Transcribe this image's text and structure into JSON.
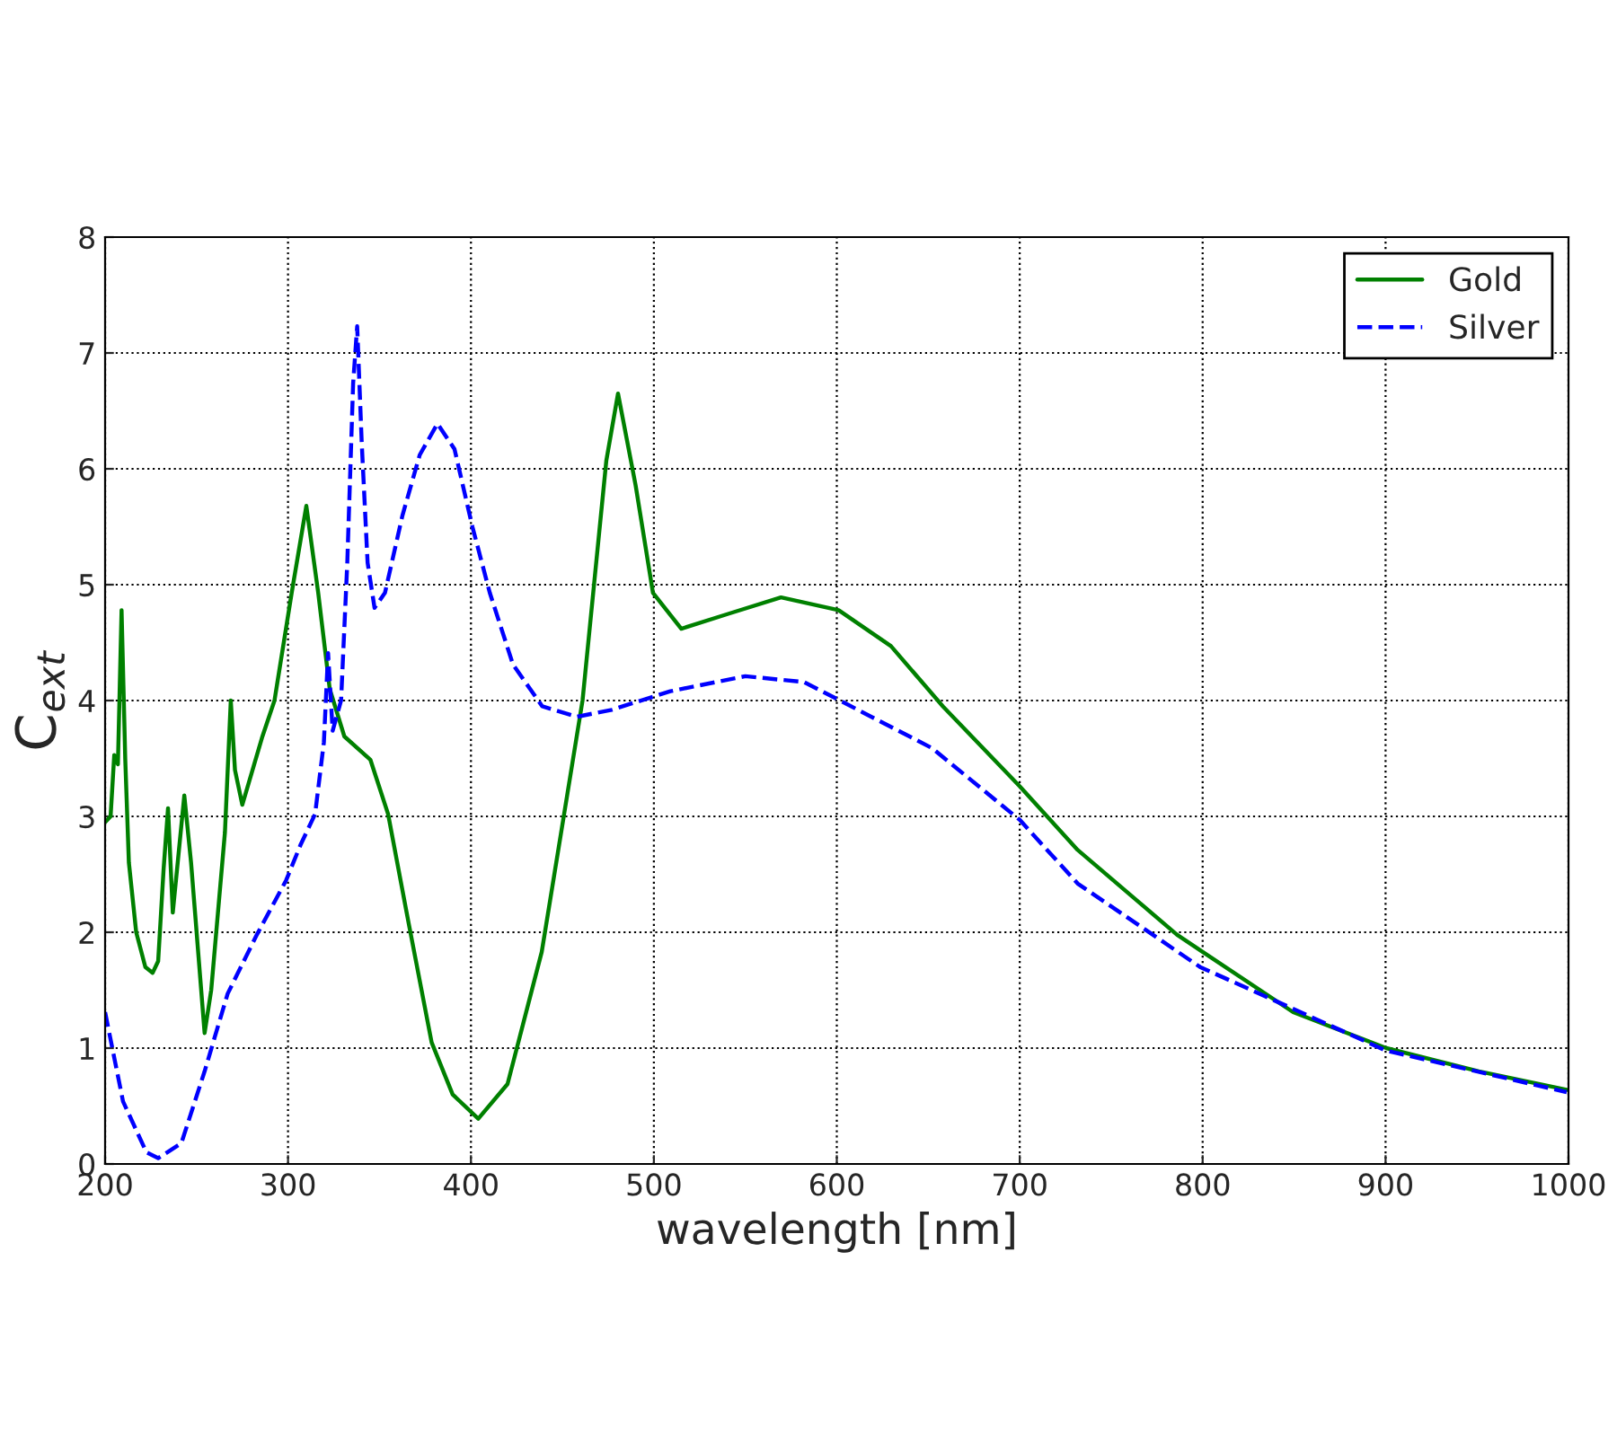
{
  "chart_data": {
    "type": "line",
    "xlabel": "wavelength [nm]",
    "ylabel": "C$_{ext}$",
    "xlim": [
      200,
      1000
    ],
    "xticks": [
      200,
      300,
      400,
      500,
      600,
      700,
      800,
      900,
      1000
    ],
    "ylim": [
      0,
      8
    ],
    "yticks": [
      0,
      1,
      2,
      3,
      4,
      5,
      6,
      7,
      8
    ],
    "grid": true,
    "legend": "top right",
    "marker": "none",
    "series": [
      {
        "name": "Gold",
        "color": "#008000",
        "line_style": "solid",
        "x": [
          200,
          203,
          205,
          207,
          209,
          211,
          213,
          217,
          222,
          226,
          229,
          232,
          234.4,
          237,
          243.3,
          247,
          254.4,
          258,
          265.5,
          268.7,
          271,
          275,
          286,
          292.6,
          302,
          310,
          316.5,
          322.8,
          330.8,
          345,
          354.7,
          365.8,
          378.5,
          390,
          404,
          420,
          438.7,
          461,
          474,
          480.4,
          490,
          499.5,
          515,
          541,
          569.5,
          601,
          629.6,
          658,
          700,
          731.7,
          785.9,
          800,
          849.5,
          900.4,
          951,
          999
        ],
        "values": [
          2.95,
          3.0,
          3.53,
          3.45,
          4.78,
          3.5,
          2.6,
          2.0,
          1.7,
          1.65,
          1.75,
          2.55,
          3.07,
          2.17,
          3.18,
          2.6,
          1.13,
          1.5,
          2.86,
          4.0,
          3.4,
          3.1,
          3.69,
          4.0,
          4.93,
          5.68,
          4.93,
          4.1,
          3.69,
          3.49,
          3.02,
          2.09,
          1.05,
          0.6,
          0.39,
          0.69,
          1.83,
          4.0,
          6.07,
          6.65,
          5.86,
          4.93,
          4.62,
          4.75,
          4.89,
          4.78,
          4.47,
          3.95,
          3.26,
          2.71,
          1.98,
          1.83,
          1.31,
          1.0,
          0.8,
          0.64
        ]
      },
      {
        "name": "Silver",
        "color": "#0000ff",
        "line_style": "dashed",
        "x": [
          200,
          209.8,
          222.6,
          229,
          241.7,
          254.4,
          267,
          283,
          299,
          307,
          314.8,
          319.6,
          321.9,
          324.4,
          329,
          332.4,
          335.6,
          337.8,
          340.3,
          343.5,
          347.3,
          353,
          362.6,
          372,
          381.7,
          391,
          400.8,
          410.3,
          423,
          439,
          458,
          477,
          509,
          550,
          582,
          614,
          652,
          700,
          731.7,
          798.6,
          900,
          999
        ],
        "values": [
          1.31,
          0.54,
          0.1,
          0.05,
          0.18,
          0.8,
          1.47,
          1.98,
          2.45,
          2.76,
          3.02,
          3.64,
          4.41,
          3.74,
          4.0,
          5.19,
          6.74,
          7.23,
          6.22,
          5.19,
          4.8,
          4.93,
          5.6,
          6.12,
          6.39,
          6.17,
          5.5,
          4.93,
          4.31,
          3.95,
          3.86,
          3.92,
          4.08,
          4.21,
          4.16,
          3.9,
          3.59,
          2.97,
          2.42,
          1.7,
          0.98,
          0.62
        ]
      }
    ]
  }
}
